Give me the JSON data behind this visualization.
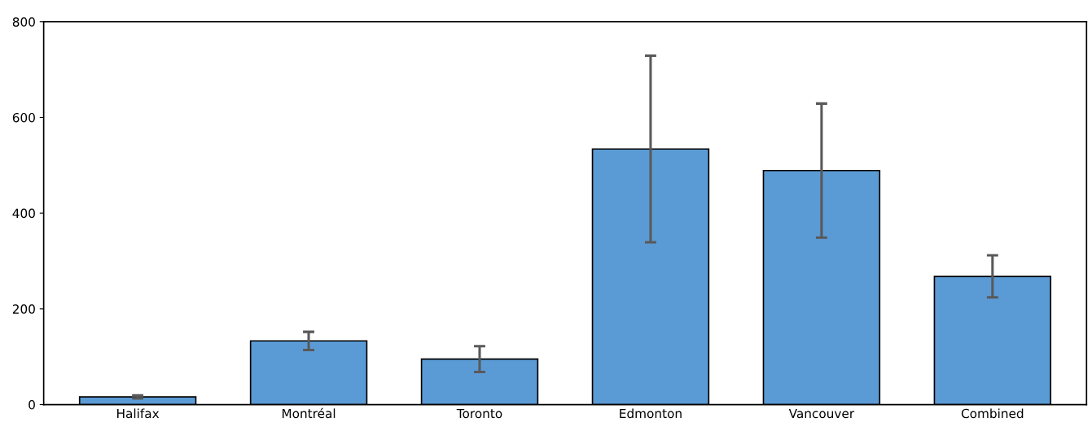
{
  "chart_data": {
    "type": "bar",
    "categories": [
      "Halifax",
      "Montréal",
      "Toronto",
      "Edmonton",
      "Vancouver",
      "Combined"
    ],
    "values": [
      16,
      133,
      95,
      534,
      489,
      268
    ],
    "errors": [
      3,
      19,
      27,
      195,
      140,
      44
    ],
    "color": "#5b9bd5",
    "ylim": [
      0,
      800
    ],
    "yticks": [
      0,
      200,
      400,
      600,
      800
    ],
    "grid": false
  }
}
